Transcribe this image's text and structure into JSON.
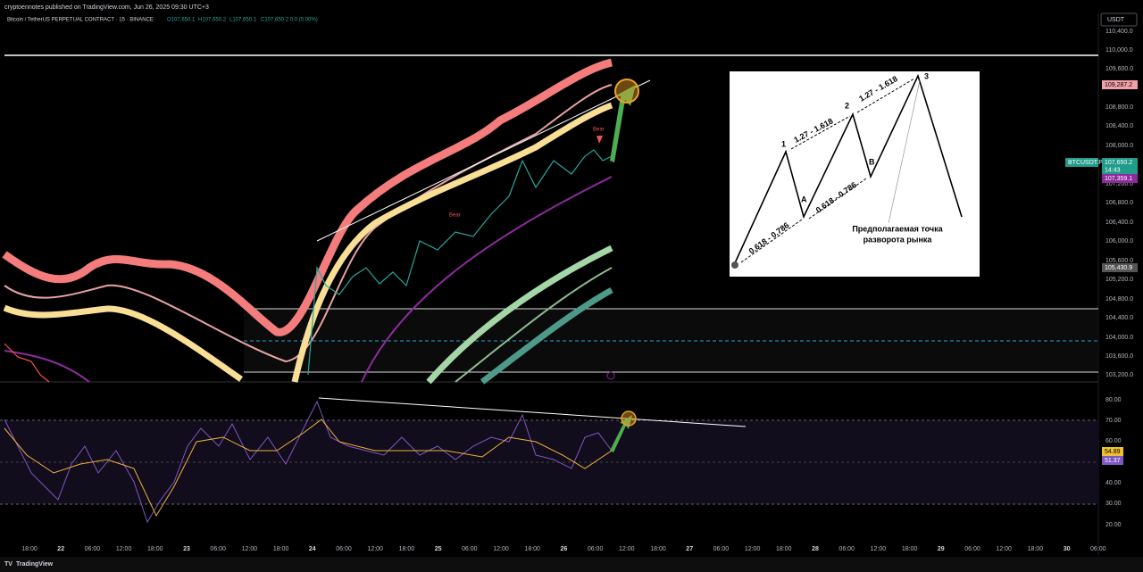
{
  "header": {
    "publisher": "cryptoennotes published on TradingView.com, Jun 26, 2025 09:30 UTC+3"
  },
  "symbol": {
    "title": "Bitcoin / TetherUS PERPETUAL CONTRACT · 15 · BINANCE",
    "ohlc": [
      "O107,650.1",
      "H107,650.2",
      "L107,650.1",
      "C107,650.2 0.0 (0.00%)"
    ]
  },
  "currency": "USDT",
  "price_axis": [
    "110,400.0",
    "110,000.0",
    "109,600.0",
    "108,800.0",
    "108,400.0",
    "108,000.0",
    "107,200.0",
    "106,800.0",
    "106,400.0",
    "106,000.0",
    "105,600.0",
    "105,200.0",
    "104,800.0",
    "104,400.0",
    "104,000.0",
    "103,600.0",
    "103,200.0"
  ],
  "price_labels": {
    "upper": "109,287.2",
    "symbol": "BTCUSDT.P",
    "last": "107,650.2",
    "countdown": "14:43",
    "band": "107,359.1",
    "lower": "105,430.9"
  },
  "rsi_axis": [
    "80.00",
    "70.00",
    "60.00",
    "40.00",
    "30.00",
    "20.00"
  ],
  "rsi_labels": [
    "54.89",
    "51.37"
  ],
  "time_axis": [
    "18:00",
    "22",
    "06:00",
    "12:00",
    "18:00",
    "23",
    "06:00",
    "12:00",
    "18:00",
    "24",
    "06:00",
    "12:00",
    "18:00",
    "25",
    "06:00",
    "12:00",
    "18:00",
    "26",
    "06:00",
    "12:00",
    "18:00",
    "27",
    "06:00",
    "12:00",
    "18:00",
    "28",
    "06:00",
    "12:00",
    "18:00",
    "29",
    "06:00",
    "12:00",
    "18:00",
    "30",
    "06:00"
  ],
  "annotations": {
    "bear": [
      "Bear",
      "Bear"
    ]
  },
  "diagram": {
    "points": [
      "1",
      "2",
      "3",
      "A",
      "B"
    ],
    "ratios": [
      "1.27 - 1.618",
      "1.27 - 1.618",
      "0.618 - 0.786",
      "0.618 - 0.786"
    ],
    "note": [
      "Предполагаемая точка",
      "разворота рынка"
    ]
  },
  "footer": "TradingView"
}
